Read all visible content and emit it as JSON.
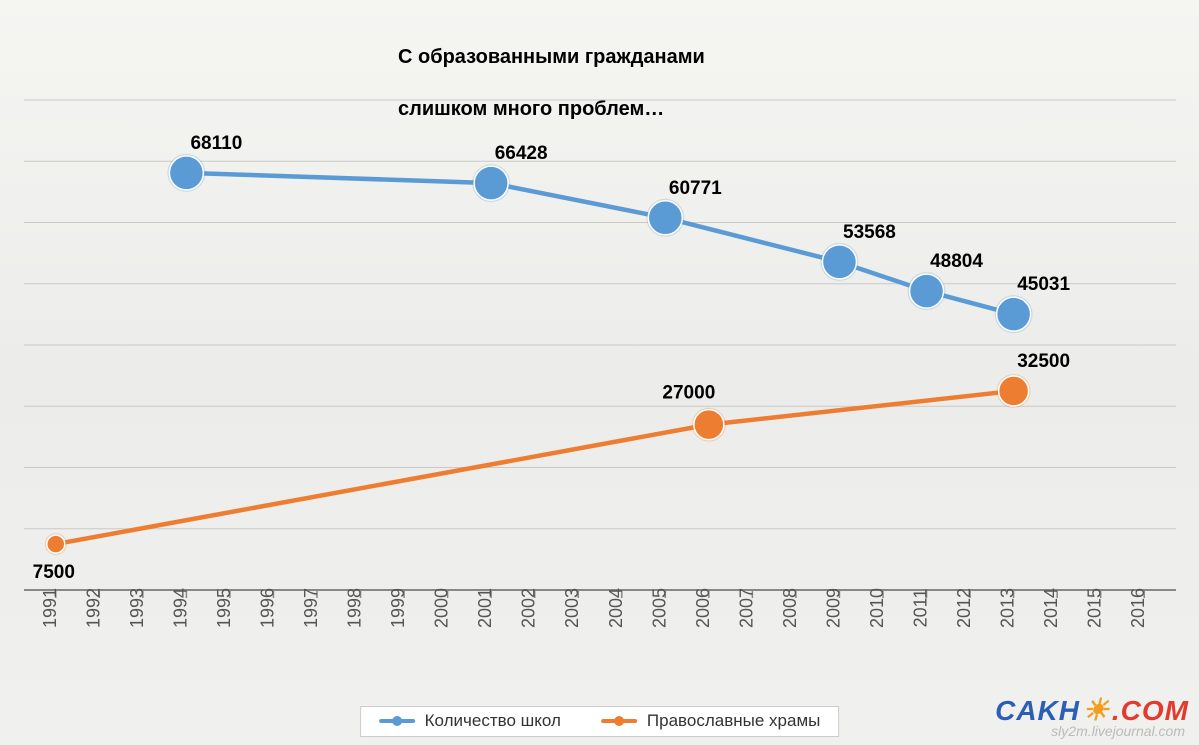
{
  "title_line1": "С образованными гражданами",
  "title_line2": "слишком много проблем…",
  "chart": {
    "type": "line",
    "background_color": "#f0f0ee",
    "grid_color": "#c9c9c7",
    "axis_color": "#888888",
    "title_fontsize": 20,
    "label_fontsize": 19,
    "xtick_fontsize": 18,
    "line_width": 4.5,
    "marker_radius_large": 17,
    "marker_radius_small": 10,
    "x_categories": [
      "1991",
      "1992",
      "1993",
      "1994",
      "1995",
      "1996",
      "1997",
      "1998",
      "1999",
      "2000",
      "2001",
      "2002",
      "2003",
      "2004",
      "2005",
      "2006",
      "2007",
      "2008",
      "2009",
      "2010",
      "2011",
      "2012",
      "2013",
      "2014",
      "2015",
      "2016"
    ],
    "x_tick_rotation": -90,
    "ylim": [
      0,
      80000
    ],
    "y_gridlines": [
      10000,
      20000,
      30000,
      40000,
      50000,
      60000,
      70000,
      80000
    ],
    "series": [
      {
        "name": "Количество школ",
        "color": "#5b9bd5",
        "marker_size": "large",
        "points": [
          {
            "x": "1994",
            "y": 68110,
            "label": "68110",
            "label_pos": "above-right"
          },
          {
            "x": "2001",
            "y": 66428,
            "label": "66428",
            "label_pos": "above-right"
          },
          {
            "x": "2005",
            "y": 60771,
            "label": "60771",
            "label_pos": "above-right"
          },
          {
            "x": "2009",
            "y": 53568,
            "label": "53568",
            "label_pos": "above-right"
          },
          {
            "x": "2011",
            "y": 48804,
            "label": "48804",
            "label_pos": "above-right"
          },
          {
            "x": "2013",
            "y": 45031,
            "label": "45031",
            "label_pos": "above-right"
          }
        ]
      },
      {
        "name": "Православные храмы",
        "color": "#ed7d31",
        "marker_size": "small",
        "points": [
          {
            "x": "1991",
            "y": 7500,
            "label": "7500",
            "label_pos": "below-left"
          },
          {
            "x": "2006",
            "y": 27000,
            "label": "27000",
            "label_pos": "above-left"
          },
          {
            "x": "2013",
            "y": 32500,
            "label": "32500",
            "label_pos": "above-right"
          }
        ]
      }
    ]
  },
  "legend": {
    "item1": "Количество школ",
    "item2": "Православные храмы",
    "item1_color": "#5b9bd5",
    "item2_color": "#ed7d31"
  },
  "logo": {
    "part1": "CAKH",
    "part2": ".COM",
    "color1": "#2a5fb5",
    "color2": "#e33a2e",
    "sun_color": "#f29e1f"
  },
  "watermark": "sly2m.livejournal.com"
}
